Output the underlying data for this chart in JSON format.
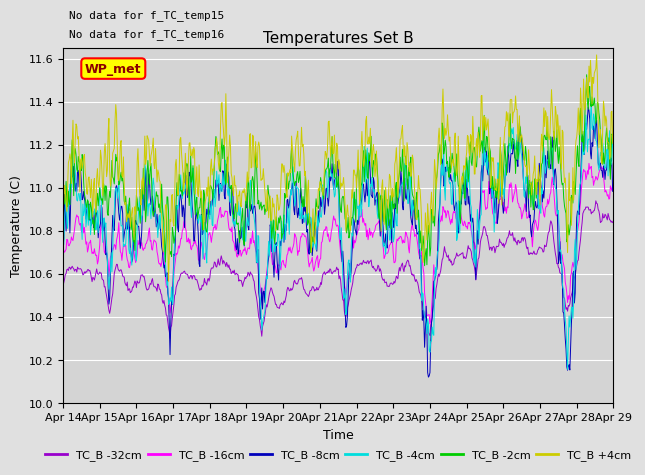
{
  "title": "Temperatures Set B",
  "xlabel": "Time",
  "ylabel": "Temperature (C)",
  "ylim": [
    10.0,
    11.65
  ],
  "yticks": [
    10.0,
    10.2,
    10.4,
    10.6,
    10.8,
    11.0,
    11.2,
    11.4,
    11.6
  ],
  "text_no_data": [
    "No data for f_TC_temp15",
    "No data for f_TC_temp16"
  ],
  "legend_label": "WP_met",
  "legend_lines": [
    "TC_B -32cm",
    "TC_B -16cm",
    "TC_B -8cm",
    "TC_B -4cm",
    "TC_B -2cm",
    "TC_B +4cm"
  ],
  "line_colors": [
    "#9900cc",
    "#ff00ff",
    "#0000bb",
    "#00dddd",
    "#00cc00",
    "#cccc00"
  ],
  "background_color": "#e0e0e0",
  "plot_bg_color": "#d4d4d4",
  "n_points": 720,
  "xtick_labels": [
    "Apr 14",
    "Apr 15",
    "Apr 16",
    "Apr 17",
    "Apr 18",
    "Apr 19",
    "Apr 20",
    "Apr 21",
    "Apr 22",
    "Apr 23",
    "Apr 24",
    "Apr 25",
    "Apr 26",
    "Apr 27",
    "Apr 28",
    "Apr 29"
  ],
  "xtick_positions": [
    0,
    48,
    96,
    144,
    192,
    240,
    288,
    336,
    384,
    432,
    480,
    528,
    576,
    624,
    672,
    720
  ]
}
